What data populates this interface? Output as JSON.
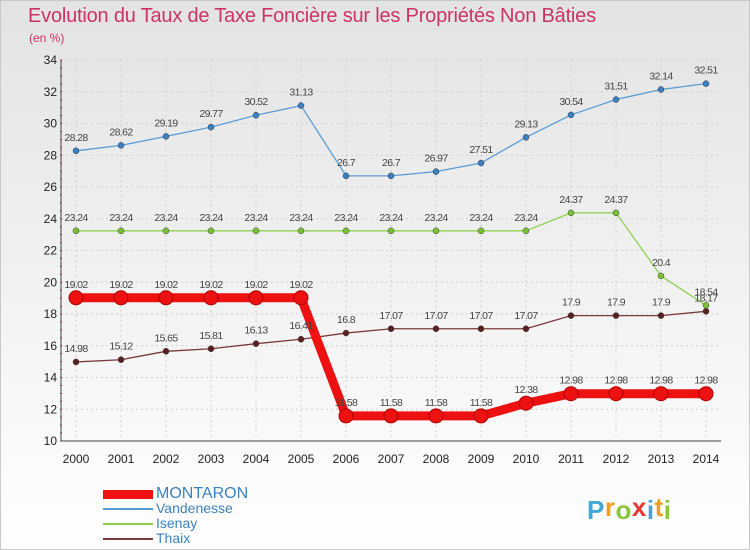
{
  "title": "Evolution du Taux de Taxe Foncière sur les Propriétés Non Bâties",
  "unit": "(en %)",
  "logo": {
    "text": "Proxiti",
    "letters": [
      "P",
      "r",
      "o",
      "x",
      "i",
      "t",
      "i"
    ],
    "colors": [
      "#3fa9d6",
      "#f0a020",
      "#8cc63f",
      "#e53935",
      "#3fa9d6",
      "#f0a020",
      "#8cc63f"
    ]
  },
  "chart_data": {
    "type": "line",
    "title": "Evolution du Taux de Taxe Foncière sur les Propriétés Non Bâties",
    "ylabel": "(en %)",
    "xlabel": "",
    "x": [
      2000,
      2001,
      2002,
      2003,
      2004,
      2005,
      2006,
      2007,
      2008,
      2009,
      2010,
      2011,
      2012,
      2013,
      2014
    ],
    "ylim": [
      10,
      34
    ],
    "yticks": [
      10,
      12,
      14,
      16,
      18,
      20,
      22,
      24,
      26,
      28,
      30,
      32,
      34
    ],
    "grid": true,
    "legend_position": "bottom-left",
    "series": [
      {
        "name": "MONTARON",
        "color": "#ee1111",
        "bold": true,
        "values": [
          19.02,
          19.02,
          19.02,
          19.02,
          19.02,
          19.02,
          11.58,
          11.58,
          11.58,
          11.58,
          12.38,
          12.98,
          12.98,
          12.98,
          12.98
        ],
        "labels": [
          "19.02",
          "19.02",
          "19.02",
          "19.02",
          "19.02",
          "19.02",
          "11.58",
          "11.58",
          "11.58",
          "11.58",
          "12.38",
          "12.98",
          "12.98",
          "12.98",
          "12.98"
        ]
      },
      {
        "name": "Vandenesse",
        "color": "#5b9bd5",
        "marker": "#3b82c4",
        "values": [
          28.28,
          28.62,
          29.19,
          29.77,
          30.52,
          31.13,
          26.7,
          26.7,
          26.97,
          27.51,
          29.13,
          30.54,
          31.51,
          32.14,
          32.51
        ],
        "labels": [
          "28.28",
          "28.62",
          "29.19",
          "29.77",
          "30.52",
          "31.13",
          "26.7",
          "26.7",
          "26.97",
          "27.51",
          "29.13",
          "30.54",
          "31.51",
          "32.14",
          "32.51"
        ]
      },
      {
        "name": "Isenay",
        "color": "#8fd14f",
        "marker": "#7bc232",
        "values": [
          23.24,
          23.24,
          23.24,
          23.24,
          23.24,
          23.24,
          23.24,
          23.24,
          23.24,
          23.24,
          23.24,
          24.37,
          24.37,
          20.4,
          18.54
        ],
        "labels": [
          "23.24",
          "23.24",
          "23.24",
          "23.24",
          "23.24",
          "23.24",
          "23.24",
          "23.24",
          "23.24",
          "23.24",
          "23.24",
          "24.37",
          "24.37",
          "20.4",
          "18.54"
        ]
      },
      {
        "name": "Thaix",
        "color": "#7a3a3a",
        "marker": "#5a1f1f",
        "values": [
          14.98,
          15.12,
          15.65,
          15.81,
          16.13,
          16.41,
          16.8,
          17.07,
          17.07,
          17.07,
          17.07,
          17.9,
          17.9,
          17.9,
          18.17
        ],
        "labels": [
          "14.98",
          "15.12",
          "15.65",
          "15.81",
          "16.13",
          "16.41",
          "16.8",
          "17.07",
          "17.07",
          "17.07",
          "17.07",
          "17.9",
          "17.9",
          "17.9",
          "18.17"
        ]
      }
    ]
  }
}
